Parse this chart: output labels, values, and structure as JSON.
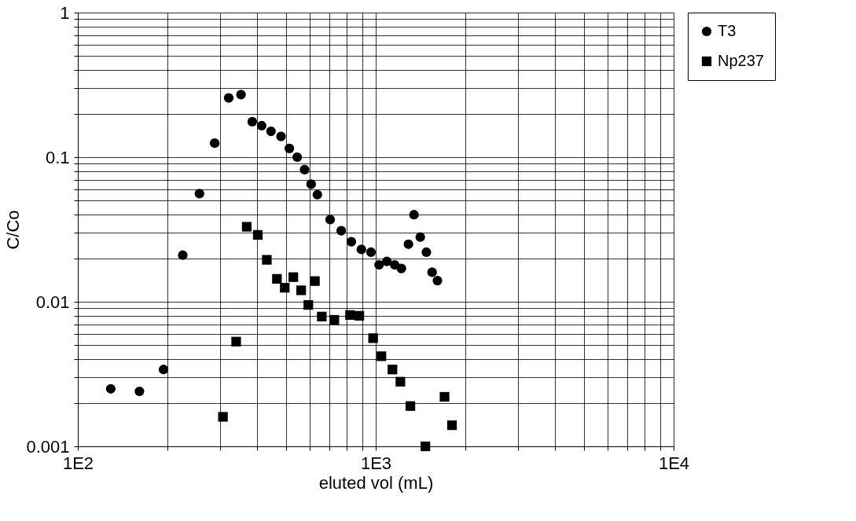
{
  "chart_data": {
    "type": "scatter",
    "xlabel": "eluted vol (mL)",
    "ylabel": "C/Co",
    "log": "xy",
    "grid": true,
    "legend": "right",
    "xlim": [
      100,
      10000
    ],
    "ylim": [
      0.001,
      1
    ],
    "xticks": [
      {
        "value": 100,
        "label": "1E2"
      },
      {
        "value": 200,
        "label": null
      },
      {
        "value": 300,
        "label": null
      },
      {
        "value": 400,
        "label": null
      },
      {
        "value": 500,
        "label": null
      },
      {
        "value": 600,
        "label": null
      },
      {
        "value": 700,
        "label": null
      },
      {
        "value": 800,
        "label": null
      },
      {
        "value": 900,
        "label": null
      },
      {
        "value": 1000,
        "label": "1E3"
      },
      {
        "value": 2000,
        "label": null
      },
      {
        "value": 3000,
        "label": null
      },
      {
        "value": 4000,
        "label": null
      },
      {
        "value": 5000,
        "label": null
      },
      {
        "value": 6000,
        "label": null
      },
      {
        "value": 7000,
        "label": null
      },
      {
        "value": 8000,
        "label": null
      },
      {
        "value": 9000,
        "label": null
      },
      {
        "value": 10000,
        "label": "1E4"
      }
    ],
    "yticks": [
      0.001,
      {
        "value": 0.002,
        "label": null
      },
      {
        "value": 0.003,
        "label": null
      },
      {
        "value": 0.004,
        "label": null
      },
      {
        "value": 0.005,
        "label": null
      },
      {
        "value": 0.006,
        "label": null
      },
      {
        "value": 0.007,
        "label": null
      },
      {
        "value": 0.008,
        "label": null
      },
      {
        "value": 0.009,
        "label": null
      },
      0.01,
      {
        "value": 0.02,
        "label": null
      },
      {
        "value": 0.03,
        "label": null
      },
      {
        "value": 0.04,
        "label": null
      },
      {
        "value": 0.05,
        "label": null
      },
      {
        "value": 0.06,
        "label": null
      },
      {
        "value": 0.07,
        "label": null
      },
      {
        "value": 0.08,
        "label": null
      },
      {
        "value": 0.09,
        "label": null
      },
      0.1,
      {
        "value": 0.2,
        "label": null
      },
      {
        "value": 0.3,
        "label": null
      },
      {
        "value": 0.4,
        "label": null
      },
      {
        "value": 0.5,
        "label": null
      },
      {
        "value": 0.6,
        "label": null
      },
      {
        "value": 0.7,
        "label": null
      },
      {
        "value": 0.8,
        "label": null
      },
      {
        "value": 0.9,
        "label": null
      },
      1
    ],
    "series": [
      {
        "name": "T3",
        "color": "#000000",
        "marker": "circle",
        "x": [
          129,
          161,
          194,
          225,
          256,
          288,
          321,
          353,
          385,
          414,
          445,
          481,
          513,
          545,
          577,
          607,
          637,
          703,
          766,
          828,
          895,
          964,
          1026,
          1090,
          1158,
          1219,
          1288,
          1344,
          1411,
          1479,
          1546,
          1611
        ],
        "values": [
          0.0025,
          0.0024,
          0.0034,
          0.021,
          0.056,
          0.125,
          0.257,
          0.271,
          0.176,
          0.165,
          0.151,
          0.139,
          0.115,
          0.1,
          0.082,
          0.065,
          0.055,
          0.037,
          0.031,
          0.026,
          0.023,
          0.022,
          0.018,
          0.019,
          0.018,
          0.017,
          0.025,
          0.04,
          0.028,
          0.022,
          0.016,
          0.014
        ]
      },
      {
        "name": "Np237",
        "color": "#000000",
        "marker": "square",
        "x": [
          307,
          340,
          369,
          402,
          431,
          466,
          495,
          529,
          562,
          594,
          625,
          659,
          726,
          820,
          881,
          980,
          1045,
          1138,
          1210,
          1307,
          1468,
          1702,
          1803
        ],
        "values": [
          0.0016,
          0.0053,
          0.033,
          0.029,
          0.0195,
          0.0144,
          0.0125,
          0.0148,
          0.012,
          0.0095,
          0.0139,
          0.0079,
          0.0075,
          0.0081,
          0.008,
          0.0056,
          0.0042,
          0.0034,
          0.0028,
          0.0019,
          0.001,
          0.0022,
          0.0014
        ]
      }
    ]
  }
}
